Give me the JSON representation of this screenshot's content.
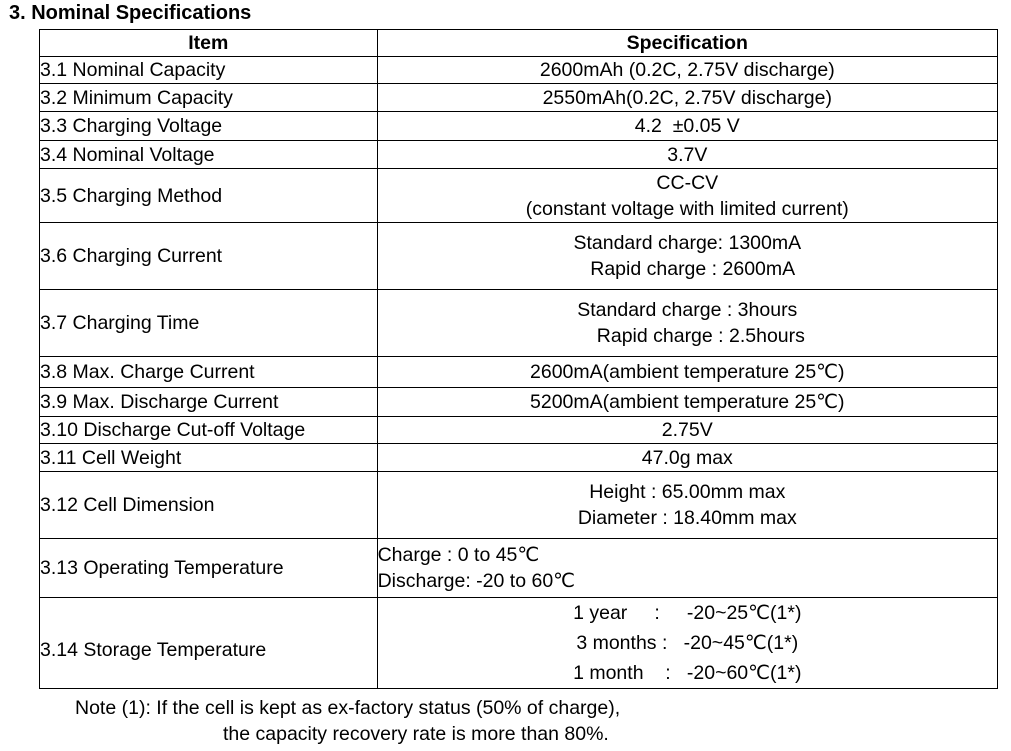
{
  "section_title": "3. Nominal Specifications",
  "table": {
    "headers": [
      "Item",
      "Specification"
    ],
    "rows": [
      {
        "item": "3.1 Nominal Capacity",
        "spec": [
          "2600mAh (0.2C, 2.75V discharge)"
        ]
      },
      {
        "item": "3.2 Minimum Capacity",
        "spec": [
          "2550mAh(0.2C, 2.75V discharge)"
        ]
      },
      {
        "item": "3.3 Charging Voltage",
        "spec": [
          "4.2  ±0.05 V"
        ]
      },
      {
        "item": "3.4 Nominal Voltage",
        "spec": [
          "3.7V"
        ]
      },
      {
        "item": "3.5 Charging Method",
        "spec": [
          "CC-CV",
          "(constant voltage with limited current)"
        ]
      },
      {
        "item": "3.6 Charging Current",
        "spec": [
          "Standard charge: 1300mA",
          "  Rapid charge : 2600mA"
        ]
      },
      {
        "item": "3.7 Charging Time",
        "spec": [
          "Standard charge : 3hours",
          "     Rapid charge : 2.5hours"
        ]
      },
      {
        "item": "3.8 Max. Charge Current",
        "spec": [
          "2600mA(ambient temperature 25℃)"
        ]
      },
      {
        "item": "3.9 Max. Discharge Current",
        "spec": [
          "5200mA(ambient temperature 25℃)"
        ]
      },
      {
        "item": "3.10 Discharge Cut-off Voltage",
        "spec": [
          "2.75V"
        ]
      },
      {
        "item": "3.11 Cell Weight",
        "spec": [
          "47.0g max"
        ]
      },
      {
        "item": "3.12 Cell Dimension",
        "spec": [
          "Height : 65.00mm max",
          "Diameter : 18.40mm max"
        ]
      },
      {
        "item": "3.13 Operating Temperature",
        "spec": [
          "Charge : 0 to 45℃",
          "Discharge: -20 to 60℃"
        ]
      },
      {
        "item": "3.14 Storage Temperature",
        "spec": [
          "1 year     :     -20~25℃(1*)",
          "3 months :   -20~45℃(1*)",
          "1 month    :   -20~60℃(1*)"
        ]
      }
    ]
  },
  "note": {
    "line1": "Note (1): If the cell is kept as ex-factory status (50% of charge),",
    "line2": "the capacity recovery rate is more than 80%."
  }
}
